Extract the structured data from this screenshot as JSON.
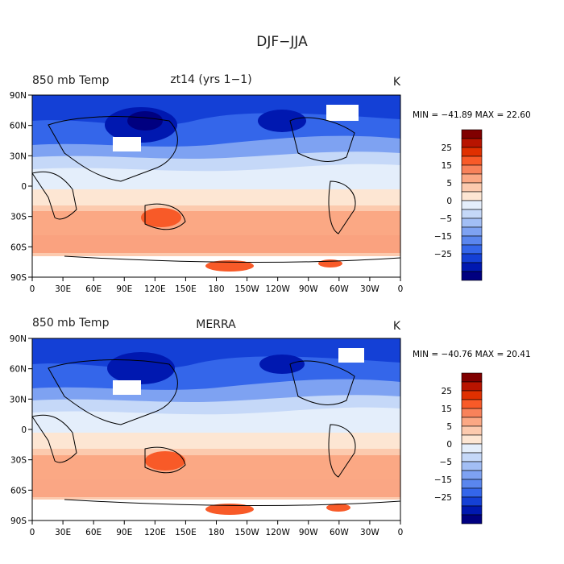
{
  "figure_title": "DJF−JJA",
  "panels": [
    {
      "left_label": "850 mb Temp",
      "center_label": "zt14 (yrs 1−1)",
      "units": "K",
      "stats": "MIN = −41.89 MAX =  22.60",
      "min": -41.89,
      "max": 22.6
    },
    {
      "left_label": "850 mb Temp",
      "center_label": "MERRA",
      "units": "K",
      "stats": "MIN = −40.76 MAX =  20.41",
      "min": -40.76,
      "max": 20.41
    }
  ],
  "axes": {
    "lon_ticks": [
      "0",
      "30E",
      "60E",
      "90E",
      "120E",
      "150E",
      "180",
      "150W",
      "120W",
      "90W",
      "60W",
      "30W",
      "0"
    ],
    "lat_ticks": [
      "90N",
      "60N",
      "30N",
      "0",
      "30S",
      "60S",
      "90S"
    ]
  },
  "colorbar": {
    "labels": [
      "25",
      "15",
      "5",
      "0",
      "−5",
      "−15",
      "−25"
    ],
    "colors": [
      "#800000",
      "#b81400",
      "#e03000",
      "#f85a28",
      "#f8825a",
      "#fba884",
      "#fccaae",
      "#fde6d3",
      "#e4eefb",
      "#c5d8f8",
      "#a2bef5",
      "#7ea2f2",
      "#5a86ee",
      "#3466ea",
      "#1440d6",
      "#0018b0",
      "#000080"
    ]
  }
}
